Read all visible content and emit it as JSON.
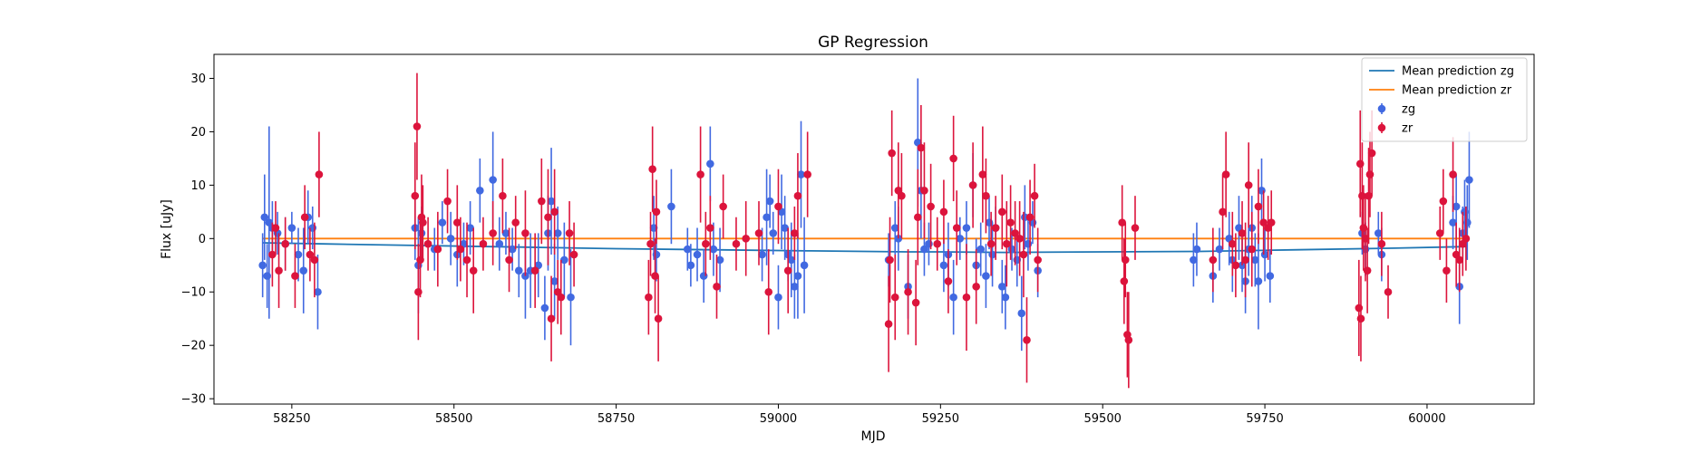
{
  "chart_data": {
    "type": "scatter",
    "title": "GP Regression",
    "xlabel": "MJD",
    "ylabel": "Flux [uJy]",
    "xlim": [
      58130,
      60165
    ],
    "ylim": [
      -31,
      34.5
    ],
    "xticks": [
      58250,
      58500,
      58750,
      59000,
      59250,
      59500,
      59750,
      60000
    ],
    "yticks": [
      -30,
      -20,
      -10,
      0,
      10,
      20,
      30
    ],
    "grid": false,
    "legend": {
      "position": "top-right",
      "entries": [
        "Mean prediction zg",
        "Mean prediction zr",
        "zg",
        "zr"
      ]
    },
    "colors": {
      "zg_line": "#1f77b4",
      "zr_line": "#ff7f0e",
      "zg_points": "#4169e1",
      "zr_points": "#dc143c"
    },
    "lines": [
      {
        "name": "Mean prediction zg",
        "x": [
          58205,
          58300,
          58450,
          58600,
          58750,
          58900,
          59050,
          59200,
          59250,
          59350,
          59500,
          59650,
          59800,
          59950,
          60060
        ],
        "y": [
          -0.8,
          -1.0,
          -1.3,
          -1.6,
          -1.9,
          -2.1,
          -2.3,
          -2.5,
          -2.5,
          -2.6,
          -2.5,
          -2.4,
          -2.1,
          -1.8,
          -1.5
        ]
      },
      {
        "name": "Mean prediction zr",
        "x": [
          58205,
          60060
        ],
        "y": [
          0.0,
          0.0
        ]
      }
    ],
    "series": [
      {
        "name": "zg",
        "points": [
          [
            58205,
            -5,
            6
          ],
          [
            58208,
            4,
            8
          ],
          [
            58212,
            -7,
            6
          ],
          [
            58215,
            3,
            18
          ],
          [
            58220,
            2,
            5
          ],
          [
            58228,
            1,
            4
          ],
          [
            58240,
            -1,
            5
          ],
          [
            58250,
            2,
            3
          ],
          [
            58260,
            -3,
            5
          ],
          [
            58268,
            -6,
            8
          ],
          [
            58275,
            4,
            5
          ],
          [
            58282,
            2,
            4
          ],
          [
            58290,
            -10,
            7
          ],
          [
            58440,
            2,
            6
          ],
          [
            58445,
            -5,
            9
          ],
          [
            58450,
            1,
            5
          ],
          [
            58470,
            -2,
            4
          ],
          [
            58482,
            3,
            4
          ],
          [
            58495,
            0,
            5
          ],
          [
            58505,
            -3,
            6
          ],
          [
            58515,
            -1,
            4
          ],
          [
            58525,
            2,
            5
          ],
          [
            58540,
            9,
            6
          ],
          [
            58560,
            11,
            9
          ],
          [
            58570,
            -1,
            5
          ],
          [
            58580,
            1,
            4
          ],
          [
            58590,
            -2,
            4
          ],
          [
            58600,
            -6,
            5
          ],
          [
            58610,
            -7,
            8
          ],
          [
            58618,
            -6,
            7
          ],
          [
            58630,
            -5,
            6
          ],
          [
            58640,
            -13,
            6
          ],
          [
            58645,
            1,
            7
          ],
          [
            58650,
            7,
            10
          ],
          [
            58655,
            -8,
            7
          ],
          [
            58660,
            1,
            5
          ],
          [
            58670,
            -4,
            7
          ],
          [
            58680,
            -11,
            9
          ],
          [
            58808,
            2,
            6
          ],
          [
            58812,
            -3,
            5
          ],
          [
            58835,
            6,
            7
          ],
          [
            58860,
            -2,
            4
          ],
          [
            58865,
            -5,
            4
          ],
          [
            58875,
            -3,
            5
          ],
          [
            58885,
            -7,
            5
          ],
          [
            58895,
            14,
            7
          ],
          [
            58900,
            -2,
            5
          ],
          [
            58910,
            -4,
            6
          ],
          [
            58975,
            -3,
            5
          ],
          [
            58982,
            4,
            9
          ],
          [
            58987,
            7,
            5
          ],
          [
            58992,
            1,
            4
          ],
          [
            59000,
            -11,
            6
          ],
          [
            59005,
            5,
            7
          ],
          [
            59010,
            2,
            6
          ],
          [
            59015,
            -3,
            5
          ],
          [
            59020,
            -4,
            7
          ],
          [
            59025,
            -9,
            6
          ],
          [
            59030,
            -7,
            8
          ],
          [
            59035,
            12,
            10
          ],
          [
            59040,
            -5,
            9
          ],
          [
            59170,
            -4,
            5
          ],
          [
            59180,
            2,
            5
          ],
          [
            59185,
            0,
            6
          ],
          [
            59200,
            -9,
            6
          ],
          [
            59215,
            18,
            12
          ],
          [
            59220,
            9,
            9
          ],
          [
            59225,
            -2,
            5
          ],
          [
            59232,
            -1,
            4
          ],
          [
            59255,
            -5,
            5
          ],
          [
            59262,
            -3,
            6
          ],
          [
            59270,
            -11,
            7
          ],
          [
            59280,
            0,
            4
          ],
          [
            59290,
            2,
            5
          ],
          [
            59300,
            10,
            6
          ],
          [
            59305,
            -5,
            5
          ],
          [
            59312,
            -2,
            5
          ],
          [
            59320,
            -7,
            6
          ],
          [
            59325,
            3,
            5
          ],
          [
            59330,
            -3,
            6
          ],
          [
            59335,
            2,
            4
          ],
          [
            59345,
            -9,
            5
          ],
          [
            59350,
            -11,
            6
          ],
          [
            59360,
            -2,
            4
          ],
          [
            59368,
            -4,
            5
          ],
          [
            59375,
            -14,
            7
          ],
          [
            59380,
            4,
            6
          ],
          [
            59385,
            -1,
            5
          ],
          [
            59392,
            3,
            4
          ],
          [
            59400,
            -6,
            5
          ],
          [
            59640,
            -4,
            5
          ],
          [
            59645,
            -2,
            5
          ],
          [
            59670,
            -7,
            5
          ],
          [
            59680,
            -2,
            4
          ],
          [
            59695,
            0,
            5
          ],
          [
            59700,
            -4,
            6
          ],
          [
            59710,
            2,
            6
          ],
          [
            59715,
            -5,
            5
          ],
          [
            59720,
            -8,
            6
          ],
          [
            59725,
            -2,
            5
          ],
          [
            59730,
            2,
            6
          ],
          [
            59735,
            -4,
            5
          ],
          [
            59740,
            -8,
            9
          ],
          [
            59745,
            9,
            6
          ],
          [
            59750,
            -3,
            5
          ],
          [
            59758,
            -7,
            5
          ],
          [
            59900,
            1,
            4
          ],
          [
            59905,
            -2,
            5
          ],
          [
            59925,
            1,
            4
          ],
          [
            59930,
            -3,
            5
          ],
          [
            60040,
            3,
            5
          ],
          [
            60045,
            6,
            6
          ],
          [
            60050,
            -9,
            7
          ],
          [
            60055,
            1,
            5
          ],
          [
            60058,
            5,
            6
          ],
          [
            60062,
            3,
            7
          ],
          [
            60065,
            11,
            9
          ]
        ]
      },
      {
        "name": "zr",
        "points": [
          [
            58220,
            -3,
            6
          ],
          [
            58225,
            2,
            5
          ],
          [
            58230,
            -6,
            7
          ],
          [
            58240,
            -1,
            5
          ],
          [
            58255,
            -7,
            6
          ],
          [
            58270,
            4,
            6
          ],
          [
            58278,
            -3,
            5
          ],
          [
            58285,
            -4,
            7
          ],
          [
            58292,
            12,
            8
          ],
          [
            58440,
            8,
            10
          ],
          [
            58443,
            21,
            10
          ],
          [
            58445,
            -10,
            9
          ],
          [
            58448,
            -4,
            7
          ],
          [
            58450,
            4,
            8
          ],
          [
            58452,
            3,
            7
          ],
          [
            58460,
            -1,
            5
          ],
          [
            58475,
            -2,
            7
          ],
          [
            58490,
            7,
            6
          ],
          [
            58505,
            3,
            7
          ],
          [
            58510,
            -2,
            6
          ],
          [
            58520,
            -4,
            7
          ],
          [
            58530,
            -6,
            8
          ],
          [
            58545,
            -1,
            5
          ],
          [
            58560,
            1,
            6
          ],
          [
            58575,
            8,
            7
          ],
          [
            58585,
            -4,
            6
          ],
          [
            58595,
            3,
            5
          ],
          [
            58610,
            1,
            8
          ],
          [
            58625,
            -6,
            7
          ],
          [
            58635,
            7,
            8
          ],
          [
            58645,
            4,
            9
          ],
          [
            58650,
            -15,
            8
          ],
          [
            58655,
            5,
            8
          ],
          [
            58660,
            -10,
            6
          ],
          [
            58665,
            -11,
            7
          ],
          [
            58678,
            1,
            6
          ],
          [
            58685,
            -3,
            6
          ],
          [
            58800,
            -11,
            7
          ],
          [
            58803,
            -1,
            6
          ],
          [
            58806,
            13,
            8
          ],
          [
            58810,
            -7,
            7
          ],
          [
            58812,
            5,
            6
          ],
          [
            58815,
            -15,
            8
          ],
          [
            58880,
            12,
            9
          ],
          [
            58888,
            -1,
            6
          ],
          [
            58895,
            2,
            6
          ],
          [
            58905,
            -9,
            6
          ],
          [
            58915,
            6,
            6
          ],
          [
            58935,
            -1,
            5
          ],
          [
            58950,
            0,
            7
          ],
          [
            58970,
            1,
            6
          ],
          [
            58985,
            -10,
            8
          ],
          [
            59000,
            6,
            7
          ],
          [
            59015,
            -6,
            8
          ],
          [
            59025,
            1,
            5
          ],
          [
            59030,
            8,
            8
          ],
          [
            59045,
            12,
            8
          ],
          [
            59170,
            -16,
            9
          ],
          [
            59172,
            -4,
            8
          ],
          [
            59175,
            16,
            8
          ],
          [
            59180,
            -11,
            8
          ],
          [
            59185,
            9,
            9
          ],
          [
            59190,
            8,
            8
          ],
          [
            59200,
            -10,
            8
          ],
          [
            59212,
            -12,
            8
          ],
          [
            59215,
            4,
            9
          ],
          [
            59220,
            17,
            8
          ],
          [
            59225,
            9,
            9
          ],
          [
            59235,
            6,
            8
          ],
          [
            59245,
            -1,
            5
          ],
          [
            59255,
            5,
            6
          ],
          [
            59262,
            -8,
            6
          ],
          [
            59270,
            15,
            8
          ],
          [
            59275,
            2,
            7
          ],
          [
            59290,
            -11,
            10
          ],
          [
            59300,
            10,
            8
          ],
          [
            59305,
            -9,
            7
          ],
          [
            59315,
            12,
            9
          ],
          [
            59320,
            8,
            7
          ],
          [
            59328,
            -1,
            6
          ],
          [
            59335,
            2,
            6
          ],
          [
            59345,
            5,
            7
          ],
          [
            59352,
            -1,
            8
          ],
          [
            59358,
            3,
            7
          ],
          [
            59365,
            1,
            6
          ],
          [
            59372,
            0,
            7
          ],
          [
            59378,
            -3,
            8
          ],
          [
            59383,
            -19,
            8
          ],
          [
            59388,
            4,
            7
          ],
          [
            59395,
            8,
            6
          ],
          [
            59400,
            -4,
            6
          ],
          [
            59530,
            3,
            7
          ],
          [
            59533,
            -8,
            8
          ],
          [
            59535,
            -4,
            7
          ],
          [
            59538,
            -18,
            8
          ],
          [
            59540,
            -19,
            9
          ],
          [
            59550,
            2,
            6
          ],
          [
            59670,
            -4,
            6
          ],
          [
            59685,
            5,
            7
          ],
          [
            59690,
            12,
            8
          ],
          [
            59700,
            -1,
            6
          ],
          [
            59705,
            -5,
            6
          ],
          [
            59715,
            1,
            6
          ],
          [
            59720,
            -4,
            7
          ],
          [
            59725,
            10,
            8
          ],
          [
            59730,
            -2,
            7
          ],
          [
            59740,
            6,
            7
          ],
          [
            59748,
            3,
            6
          ],
          [
            59755,
            2,
            6
          ],
          [
            59760,
            3,
            6
          ],
          [
            59895,
            -13,
            9
          ],
          [
            59897,
            14,
            10
          ],
          [
            59898,
            -15,
            8
          ],
          [
            59900,
            8,
            10
          ],
          [
            59902,
            2,
            8
          ],
          [
            59905,
            0,
            8
          ],
          [
            59908,
            -6,
            8
          ],
          [
            59910,
            8,
            9
          ],
          [
            59912,
            12,
            8
          ],
          [
            59915,
            16,
            8
          ],
          [
            59930,
            -1,
            6
          ],
          [
            59940,
            -10,
            5
          ],
          [
            60020,
            1,
            5
          ],
          [
            60025,
            7,
            6
          ],
          [
            60030,
            -6,
            6
          ],
          [
            60040,
            12,
            7
          ],
          [
            60045,
            -3,
            6
          ],
          [
            60050,
            -4,
            6
          ],
          [
            60055,
            -1,
            6
          ],
          [
            60060,
            0,
            6
          ]
        ]
      }
    ]
  }
}
